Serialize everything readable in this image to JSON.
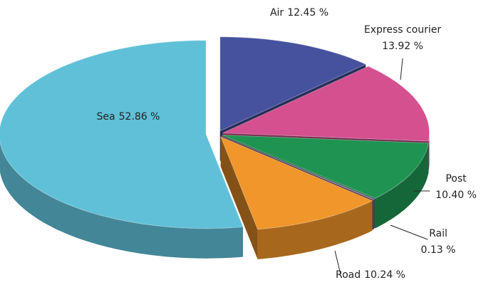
{
  "chart_data": {
    "type": "pie",
    "categories": [
      "Air",
      "Express courier",
      "Post",
      "Rail",
      "Road",
      "Sea"
    ],
    "values": [
      12.45,
      13.92,
      10.4,
      0.13,
      10.24,
      52.86
    ],
    "value_labels": [
      "12.45 %",
      "13.92 %",
      "10.40 %",
      "0.13 %",
      "10.24 %",
      "52.86 %"
    ],
    "colors": [
      "#46529e",
      "#d4508f",
      "#1f9452",
      "#7a5a8a",
      "#f0962a",
      "#60c0d8"
    ]
  }
}
